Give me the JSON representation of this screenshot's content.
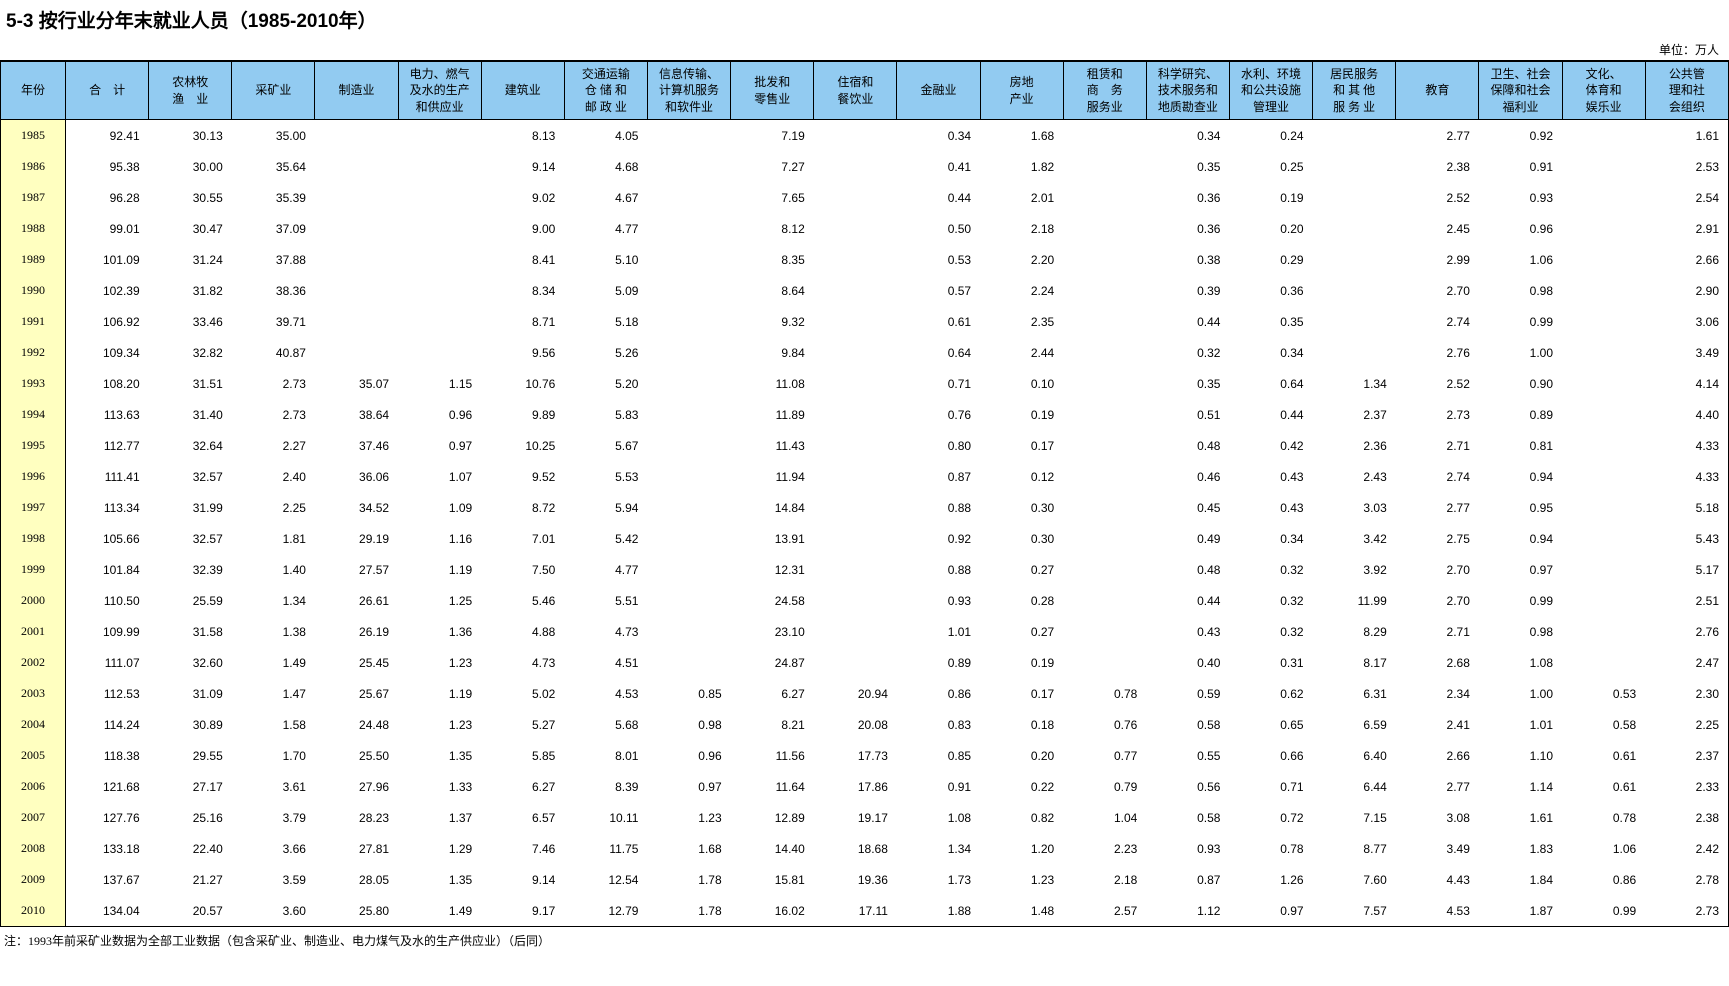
{
  "title": "5-3 按行业分年末就业人员（1985-2010年）",
  "unit_label": "单位：万人",
  "note": "注：1993年前采矿业数据为全部工业数据（包含采矿业、制造业、电力煤气及水的生产供应业）（后同）",
  "colors": {
    "header_bg": "#92cbf1",
    "year_col_bg": "#ffffc0"
  },
  "table": {
    "columns": [
      "年份",
      "合　计",
      "农林牧\n渔　业",
      "采矿业",
      "制造业",
      "电力、燃气\n及水的生产\n和供应业",
      "建筑业",
      "交通运输\n仓 储 和\n邮 政 业",
      "信息传输、\n计算机服务\n和软件业",
      "批发和\n零售业",
      "住宿和\n餐饮业",
      "金融业",
      "房地\n产业",
      "租赁和\n商　务\n服务业",
      "科学研究、\n技术服务和\n地质勘查业",
      "水利、环境\n和公共设施\n管理业",
      "居民服务\n和 其 他\n服 务 业",
      "教育",
      "卫生、社会\n保障和社会\n福利业",
      "文化、\n体育和\n娱乐业",
      "公共管\n理和社\n会组织"
    ],
    "rows": [
      {
        "year": "1985",
        "values": [
          "92.41",
          "30.13",
          "35.00",
          "",
          "",
          "8.13",
          "4.05",
          "",
          "7.19",
          "",
          "0.34",
          "1.68",
          "",
          "0.34",
          "0.24",
          "",
          "2.77",
          "0.92",
          "",
          "1.61"
        ]
      },
      {
        "year": "1986",
        "values": [
          "95.38",
          "30.00",
          "35.64",
          "",
          "",
          "9.14",
          "4.68",
          "",
          "7.27",
          "",
          "0.41",
          "1.82",
          "",
          "0.35",
          "0.25",
          "",
          "2.38",
          "0.91",
          "",
          "2.53"
        ]
      },
      {
        "year": "1987",
        "values": [
          "96.28",
          "30.55",
          "35.39",
          "",
          "",
          "9.02",
          "4.67",
          "",
          "7.65",
          "",
          "0.44",
          "2.01",
          "",
          "0.36",
          "0.19",
          "",
          "2.52",
          "0.93",
          "",
          "2.54"
        ]
      },
      {
        "year": "1988",
        "values": [
          "99.01",
          "30.47",
          "37.09",
          "",
          "",
          "9.00",
          "4.77",
          "",
          "8.12",
          "",
          "0.50",
          "2.18",
          "",
          "0.36",
          "0.20",
          "",
          "2.45",
          "0.96",
          "",
          "2.91"
        ]
      },
      {
        "year": "1989",
        "values": [
          "101.09",
          "31.24",
          "37.88",
          "",
          "",
          "8.41",
          "5.10",
          "",
          "8.35",
          "",
          "0.53",
          "2.20",
          "",
          "0.38",
          "0.29",
          "",
          "2.99",
          "1.06",
          "",
          "2.66"
        ]
      },
      {
        "year": "1990",
        "values": [
          "102.39",
          "31.82",
          "38.36",
          "",
          "",
          "8.34",
          "5.09",
          "",
          "8.64",
          "",
          "0.57",
          "2.24",
          "",
          "0.39",
          "0.36",
          "",
          "2.70",
          "0.98",
          "",
          "2.90"
        ]
      },
      {
        "year": "1991",
        "values": [
          "106.92",
          "33.46",
          "39.71",
          "",
          "",
          "8.71",
          "5.18",
          "",
          "9.32",
          "",
          "0.61",
          "2.35",
          "",
          "0.44",
          "0.35",
          "",
          "2.74",
          "0.99",
          "",
          "3.06"
        ]
      },
      {
        "year": "1992",
        "values": [
          "109.34",
          "32.82",
          "40.87",
          "",
          "",
          "9.56",
          "5.26",
          "",
          "9.84",
          "",
          "0.64",
          "2.44",
          "",
          "0.32",
          "0.34",
          "",
          "2.76",
          "1.00",
          "",
          "3.49"
        ]
      },
      {
        "year": "1993",
        "values": [
          "108.20",
          "31.51",
          "2.73",
          "35.07",
          "1.15",
          "10.76",
          "5.20",
          "",
          "11.08",
          "",
          "0.71",
          "0.10",
          "",
          "0.35",
          "0.64",
          "1.34",
          "2.52",
          "0.90",
          "",
          "4.14"
        ]
      },
      {
        "year": "1994",
        "values": [
          "113.63",
          "31.40",
          "2.73",
          "38.64",
          "0.96",
          "9.89",
          "5.83",
          "",
          "11.89",
          "",
          "0.76",
          "0.19",
          "",
          "0.51",
          "0.44",
          "2.37",
          "2.73",
          "0.89",
          "",
          "4.40"
        ]
      },
      {
        "year": "1995",
        "values": [
          "112.77",
          "32.64",
          "2.27",
          "37.46",
          "0.97",
          "10.25",
          "5.67",
          "",
          "11.43",
          "",
          "0.80",
          "0.17",
          "",
          "0.48",
          "0.42",
          "2.36",
          "2.71",
          "0.81",
          "",
          "4.33"
        ]
      },
      {
        "year": "1996",
        "values": [
          "111.41",
          "32.57",
          "2.40",
          "36.06",
          "1.07",
          "9.52",
          "5.53",
          "",
          "11.94",
          "",
          "0.87",
          "0.12",
          "",
          "0.46",
          "0.43",
          "2.43",
          "2.74",
          "0.94",
          "",
          "4.33"
        ]
      },
      {
        "year": "1997",
        "values": [
          "113.34",
          "31.99",
          "2.25",
          "34.52",
          "1.09",
          "8.72",
          "5.94",
          "",
          "14.84",
          "",
          "0.88",
          "0.30",
          "",
          "0.45",
          "0.43",
          "3.03",
          "2.77",
          "0.95",
          "",
          "5.18"
        ]
      },
      {
        "year": "1998",
        "values": [
          "105.66",
          "32.57",
          "1.81",
          "29.19",
          "1.16",
          "7.01",
          "5.42",
          "",
          "13.91",
          "",
          "0.92",
          "0.30",
          "",
          "0.49",
          "0.34",
          "3.42",
          "2.75",
          "0.94",
          "",
          "5.43"
        ]
      },
      {
        "year": "1999",
        "values": [
          "101.84",
          "32.39",
          "1.40",
          "27.57",
          "1.19",
          "7.50",
          "4.77",
          "",
          "12.31",
          "",
          "0.88",
          "0.27",
          "",
          "0.48",
          "0.32",
          "3.92",
          "2.70",
          "0.97",
          "",
          "5.17"
        ]
      },
      {
        "year": "2000",
        "values": [
          "110.50",
          "25.59",
          "1.34",
          "26.61",
          "1.25",
          "5.46",
          "5.51",
          "",
          "24.58",
          "",
          "0.93",
          "0.28",
          "",
          "0.44",
          "0.32",
          "11.99",
          "2.70",
          "0.99",
          "",
          "2.51"
        ]
      },
      {
        "year": "2001",
        "values": [
          "109.99",
          "31.58",
          "1.38",
          "26.19",
          "1.36",
          "4.88",
          "4.73",
          "",
          "23.10",
          "",
          "1.01",
          "0.27",
          "",
          "0.43",
          "0.32",
          "8.29",
          "2.71",
          "0.98",
          "",
          "2.76"
        ]
      },
      {
        "year": "2002",
        "values": [
          "111.07",
          "32.60",
          "1.49",
          "25.45",
          "1.23",
          "4.73",
          "4.51",
          "",
          "24.87",
          "",
          "0.89",
          "0.19",
          "",
          "0.40",
          "0.31",
          "8.17",
          "2.68",
          "1.08",
          "",
          "2.47"
        ]
      },
      {
        "year": "2003",
        "values": [
          "112.53",
          "31.09",
          "1.47",
          "25.67",
          "1.19",
          "5.02",
          "4.53",
          "0.85",
          "6.27",
          "20.94",
          "0.86",
          "0.17",
          "0.78",
          "0.59",
          "0.62",
          "6.31",
          "2.34",
          "1.00",
          "0.53",
          "2.30"
        ]
      },
      {
        "year": "2004",
        "values": [
          "114.24",
          "30.89",
          "1.58",
          "24.48",
          "1.23",
          "5.27",
          "5.68",
          "0.98",
          "8.21",
          "20.08",
          "0.83",
          "0.18",
          "0.76",
          "0.58",
          "0.65",
          "6.59",
          "2.41",
          "1.01",
          "0.58",
          "2.25"
        ]
      },
      {
        "year": "2005",
        "values": [
          "118.38",
          "29.55",
          "1.70",
          "25.50",
          "1.35",
          "5.85",
          "8.01",
          "0.96",
          "11.56",
          "17.73",
          "0.85",
          "0.20",
          "0.77",
          "0.55",
          "0.66",
          "6.40",
          "2.66",
          "1.10",
          "0.61",
          "2.37"
        ]
      },
      {
        "year": "2006",
        "values": [
          "121.68",
          "27.17",
          "3.61",
          "27.96",
          "1.33",
          "6.27",
          "8.39",
          "0.97",
          "11.64",
          "17.86",
          "0.91",
          "0.22",
          "0.79",
          "0.56",
          "0.71",
          "6.44",
          "2.77",
          "1.14",
          "0.61",
          "2.33"
        ]
      },
      {
        "year": "2007",
        "values": [
          "127.76",
          "25.16",
          "3.79",
          "28.23",
          "1.37",
          "6.57",
          "10.11",
          "1.23",
          "12.89",
          "19.17",
          "1.08",
          "0.82",
          "1.04",
          "0.58",
          "0.72",
          "7.15",
          "3.08",
          "1.61",
          "0.78",
          "2.38"
        ]
      },
      {
        "year": "2008",
        "values": [
          "133.18",
          "22.40",
          "3.66",
          "27.81",
          "1.29",
          "7.46",
          "11.75",
          "1.68",
          "14.40",
          "18.68",
          "1.34",
          "1.20",
          "2.23",
          "0.93",
          "0.78",
          "8.77",
          "3.49",
          "1.83",
          "1.06",
          "2.42"
        ]
      },
      {
        "year": "2009",
        "values": [
          "137.67",
          "21.27",
          "3.59",
          "28.05",
          "1.35",
          "9.14",
          "12.54",
          "1.78",
          "15.81",
          "19.36",
          "1.73",
          "1.23",
          "2.18",
          "0.87",
          "1.26",
          "7.60",
          "4.43",
          "1.84",
          "0.86",
          "2.78"
        ]
      },
      {
        "year": "2010",
        "values": [
          "134.04",
          "20.57",
          "3.60",
          "25.80",
          "1.49",
          "9.17",
          "12.79",
          "1.78",
          "16.02",
          "17.11",
          "1.88",
          "1.48",
          "2.57",
          "1.12",
          "0.97",
          "7.57",
          "4.53",
          "1.87",
          "0.99",
          "2.73"
        ]
      }
    ]
  }
}
